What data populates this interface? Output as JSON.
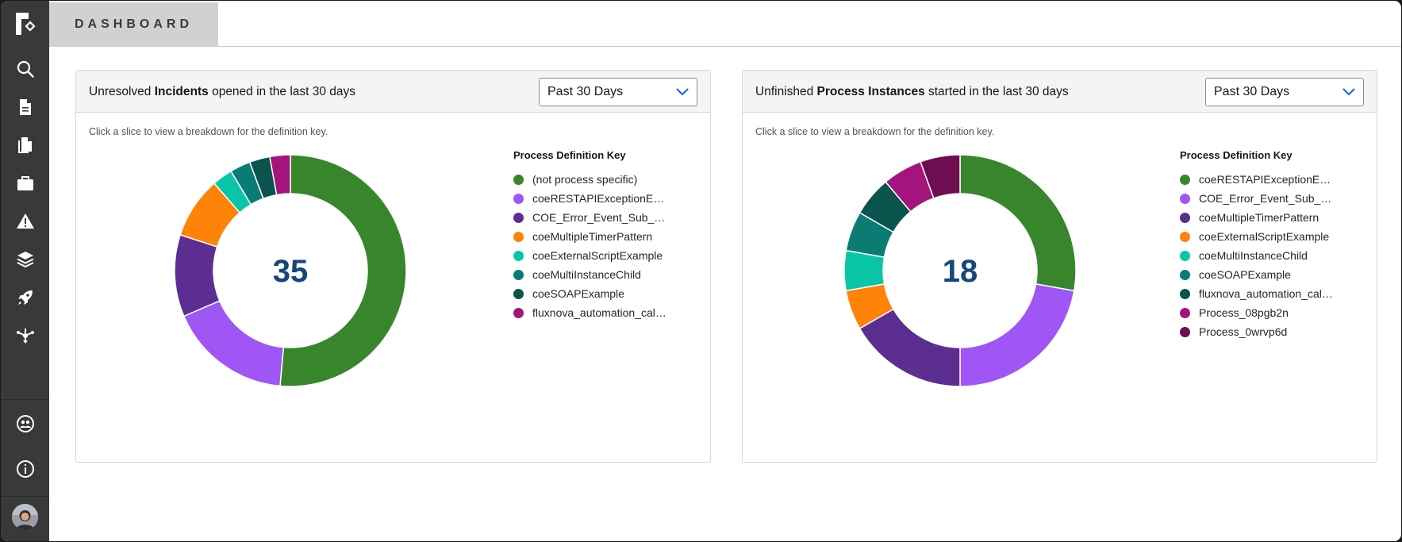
{
  "header": {
    "tab_label": "DASHBOARD"
  },
  "sidebar": {
    "items": [
      {
        "name": "search",
        "icon": "search-icon"
      },
      {
        "name": "document",
        "icon": "document-icon"
      },
      {
        "name": "documents",
        "icon": "copy-icon"
      },
      {
        "name": "briefcase",
        "icon": "briefcase-icon"
      },
      {
        "name": "alerts",
        "icon": "warning-icon"
      },
      {
        "name": "layers",
        "icon": "layers-icon"
      },
      {
        "name": "deploy",
        "icon": "rocket-icon"
      },
      {
        "name": "flow",
        "icon": "flow-icon"
      },
      {
        "name": "users",
        "icon": "user-group-icon"
      },
      {
        "name": "info",
        "icon": "info-icon"
      }
    ]
  },
  "incidents": {
    "title_pre": "Unresolved ",
    "title_bold": "Incidents",
    "title_post": " opened in the last 30 days",
    "range_label": "Past 30 Days",
    "hint": "Click a slice to view a breakdown for the definition key.",
    "total": "35",
    "legend_title": "Process Definition Key",
    "legend": [
      {
        "label": "(not process specific)",
        "color": "#37862b"
      },
      {
        "label": "coeRESTAPIExceptionE…",
        "color": "#a056f5"
      },
      {
        "label": "COE_Error_Event_Sub_…",
        "color": "#5c2e91"
      },
      {
        "label": "coeMultipleTimerPattern",
        "color": "#ff8308"
      },
      {
        "label": "coeExternalScriptExample",
        "color": "#08c6a7"
      },
      {
        "label": "coeMultiInstanceChild",
        "color": "#0b7c74"
      },
      {
        "label": "coeSOAPExample",
        "color": "#0b544d"
      },
      {
        "label": "fluxnova_automation_cal…",
        "color": "#a3147c"
      }
    ]
  },
  "instances": {
    "title_pre": "Unfinished ",
    "title_bold": "Process Instances",
    "title_post": " started in the last 30 days",
    "range_label": "Past 30 Days",
    "hint": "Click a slice to view a breakdown for the definition key.",
    "total": "18",
    "legend_title": "Process Definition Key",
    "legend": [
      {
        "label": "coeRESTAPIExceptionE…",
        "color": "#37862b"
      },
      {
        "label": "COE_Error_Event_Sub_…",
        "color": "#a056f5"
      },
      {
        "label": "coeMultipleTimerPattern",
        "color": "#5c2e91"
      },
      {
        "label": "coeExternalScriptExample",
        "color": "#ff8308"
      },
      {
        "label": "coeMultiInstanceChild",
        "color": "#08c6a7"
      },
      {
        "label": "coeSOAPExample",
        "color": "#0b7c74"
      },
      {
        "label": "fluxnova_automation_cal…",
        "color": "#0b544d"
      },
      {
        "label": "Process_08pgb2n",
        "color": "#a3147c"
      },
      {
        "label": "Process_0wrvp6d",
        "color": "#6f0d52"
      }
    ]
  },
  "chart_data": [
    {
      "type": "pie",
      "categories": [
        "(not process specific)",
        "coeRESTAPIExceptionE…",
        "COE_Error_Event_Sub_…",
        "coeMultipleTimerPattern",
        "coeExternalScriptExample",
        "coeMultiInstanceChild",
        "coeSOAPExample",
        "fluxnova_automation_cal…"
      ],
      "values": [
        18,
        6,
        4,
        3,
        1,
        1,
        1,
        1
      ],
      "colors": [
        "#37862b",
        "#a056f5",
        "#5c2e91",
        "#ff8308",
        "#08c6a7",
        "#0b7c74",
        "#0b544d",
        "#a3147c"
      ],
      "title": "Unresolved Incidents opened in the last 30 days",
      "center_label": "35",
      "legend_position": "right"
    },
    {
      "type": "pie",
      "categories": [
        "coeRESTAPIExceptionE…",
        "COE_Error_Event_Sub_…",
        "coeMultipleTimerPattern",
        "coeExternalScriptExample",
        "coeMultiInstanceChild",
        "coeSOAPExample",
        "fluxnova_automation_cal…",
        "Process_08pgb2n",
        "Process_0wrvp6d"
      ],
      "values": [
        5,
        4,
        3,
        1,
        1,
        1,
        1,
        1,
        1
      ],
      "colors": [
        "#37862b",
        "#a056f5",
        "#5c2e91",
        "#ff8308",
        "#08c6a7",
        "#0b7c74",
        "#0b544d",
        "#a3147c",
        "#6f0d52"
      ],
      "title": "Unfinished Process Instances started in the last 30 days",
      "center_label": "18",
      "legend_position": "right"
    }
  ]
}
